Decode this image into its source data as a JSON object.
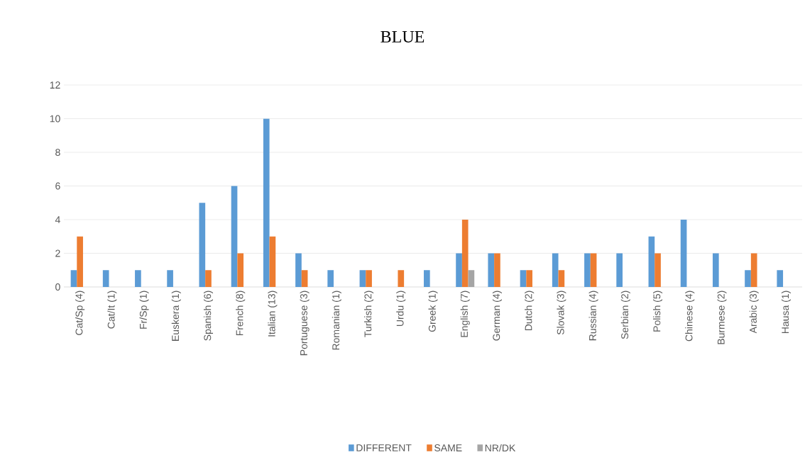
{
  "chart_data": {
    "type": "bar",
    "title": "BLUE",
    "categories": [
      "Cat/Sp (4)",
      "Cat/It (1)",
      "Fr/Sp (1)",
      "Euskera (1)",
      "Spanish (6)",
      "French (8)",
      "Italian (13)",
      "Portuguese (3)",
      "Romanian (1)",
      "Turkish (2)",
      "Urdu (1)",
      "Greek (1)",
      "English (7)",
      "German (4)",
      "Dutch (2)",
      "Slovak (3)",
      "Russian (4)",
      "Serbian (2)",
      "Polish (5)",
      "Chinese (4)",
      "Burmese (2)",
      "Arabic (3)",
      "Hausa (1)"
    ],
    "series": [
      {
        "name": "DIFFERENT",
        "color": "#5b9bd5",
        "values": [
          1,
          1,
          1,
          1,
          5,
          6,
          10,
          2,
          1,
          1,
          0,
          1,
          2,
          2,
          1,
          2,
          2,
          2,
          3,
          4,
          2,
          1,
          1
        ]
      },
      {
        "name": "SAME",
        "color": "#ed7d31",
        "values": [
          3,
          0,
          0,
          0,
          1,
          2,
          3,
          1,
          0,
          1,
          1,
          0,
          4,
          2,
          1,
          1,
          2,
          0,
          2,
          0,
          0,
          2,
          0
        ]
      },
      {
        "name": "NR/DK",
        "color": "#a5a5a5",
        "values": [
          0,
          0,
          0,
          0,
          0,
          0,
          0,
          0,
          0,
          0,
          0,
          0,
          1,
          0,
          0,
          0,
          0,
          0,
          0,
          0,
          0,
          0,
          0
        ]
      }
    ],
    "ylim": [
      0,
      12
    ],
    "yticks": [
      0,
      2,
      4,
      6,
      8,
      10,
      12
    ],
    "grid": "y",
    "legend": "bottom"
  }
}
